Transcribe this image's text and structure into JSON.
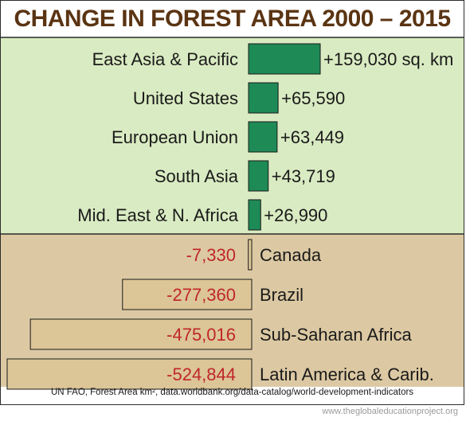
{
  "title": "CHANGE IN FOREST AREA 2000 – 2015",
  "source": "UN FAO, Forest Area km², data.worldbank.org/data-catalog/world-development-indicators",
  "credit": "www.theglobaleducationproject.org",
  "colors": {
    "gain_panel": "#d9ebc2",
    "loss_panel": "#dcc9a3",
    "gain_bar": "#1e8a55",
    "loss_bar": "#dcc597",
    "title_text": "#5a3413",
    "negative_text": "#c0262a"
  },
  "chart_data": {
    "type": "bar",
    "orientation": "horizontal-diverging",
    "unit": "sq. km",
    "title": "CHANGE IN FOREST AREA 2000 – 2015",
    "gains": [
      {
        "category": "East Asia & Pacific",
        "value": 159030,
        "label": "+159,030 sq. km"
      },
      {
        "category": "United States",
        "value": 65590,
        "label": "+65,590"
      },
      {
        "category": "European Union",
        "value": 63449,
        "label": "+63,449"
      },
      {
        "category": "South Asia",
        "value": 43719,
        "label": "+43,719"
      },
      {
        "category": "Mid. East & N. Africa",
        "value": 26990,
        "label": "+26,990"
      }
    ],
    "losses": [
      {
        "category": "Canada",
        "value": -7330,
        "label": "-7,330"
      },
      {
        "category": "Brazil",
        "value": -277360,
        "label": "-277,360"
      },
      {
        "category": "Sub-Saharan Africa",
        "value": -475016,
        "label": "-475,016"
      },
      {
        "category": "Latin America & Carib.",
        "value": -524844,
        "label": "-524,844"
      }
    ]
  }
}
